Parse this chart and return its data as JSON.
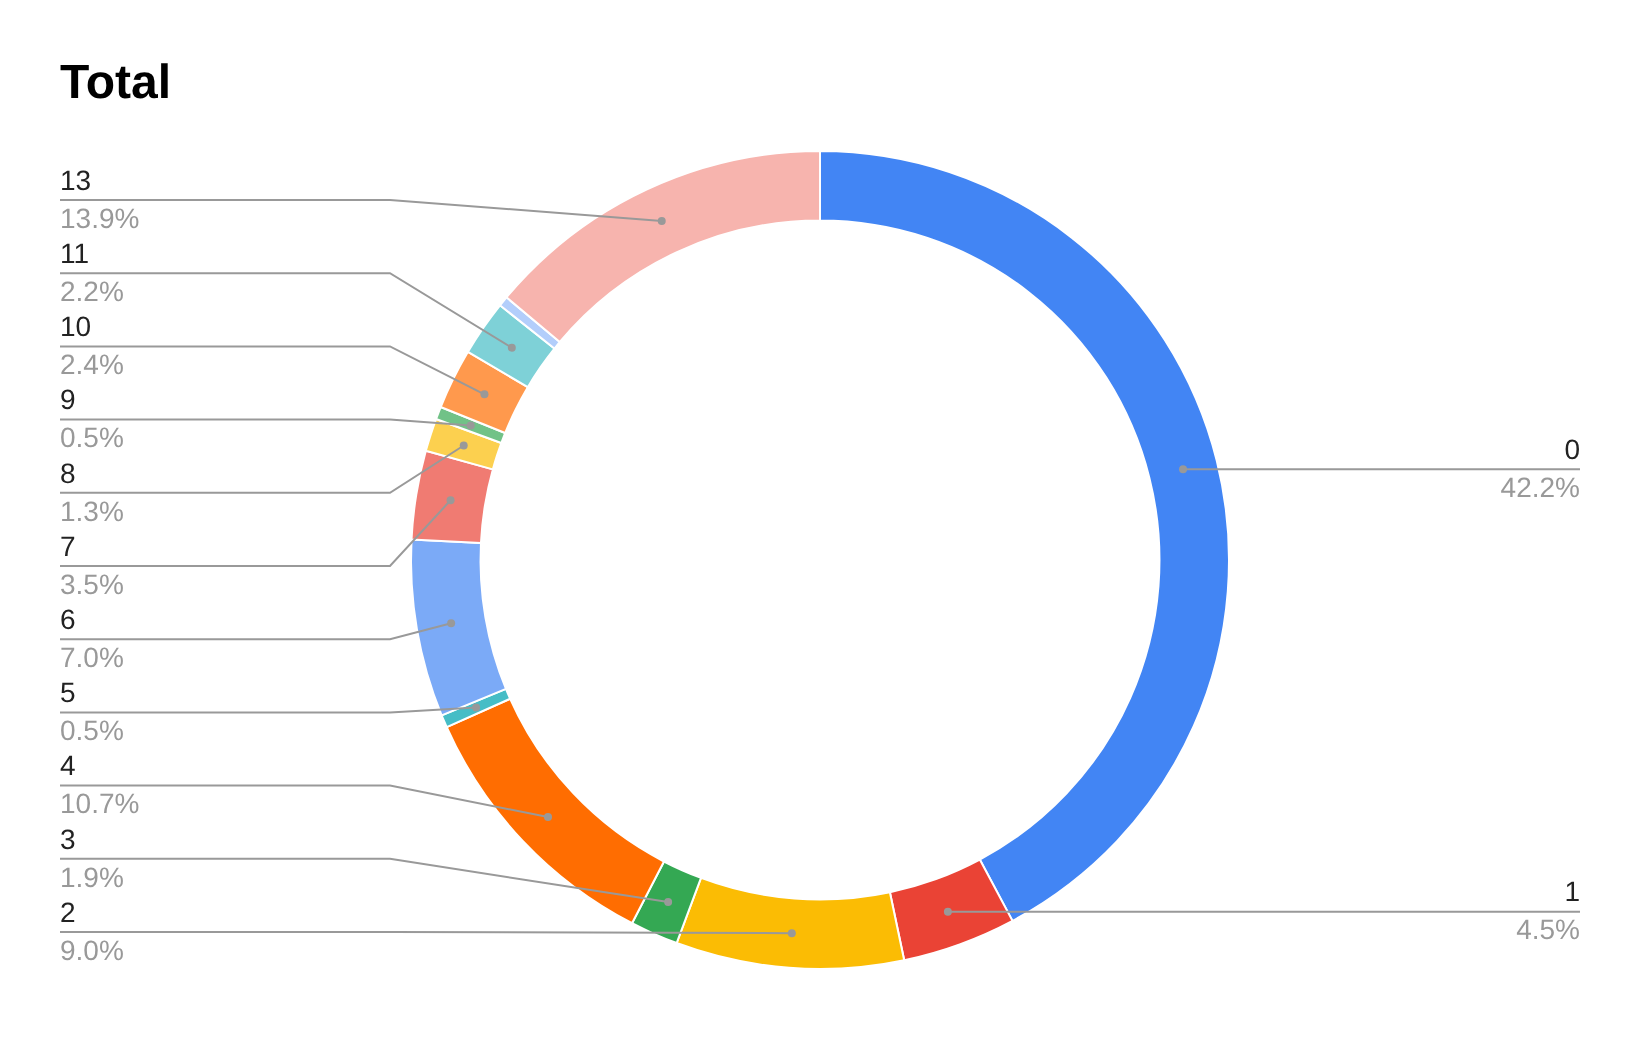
{
  "chart_data": {
    "type": "donut",
    "title": "Total",
    "categories": [
      "0",
      "1",
      "2",
      "3",
      "4",
      "5",
      "6",
      "7",
      "8",
      "9",
      "10",
      "11",
      null,
      "13"
    ],
    "values": [
      42.2,
      4.5,
      9.0,
      1.9,
      10.7,
      0.5,
      7.0,
      3.5,
      1.3,
      0.5,
      2.4,
      2.2,
      0.4,
      13.9
    ],
    "value_labels": [
      "42.2%",
      "4.5%",
      "9.0%",
      "1.9%",
      "10.7%",
      "0.5%",
      "7.0%",
      "3.5%",
      "1.3%",
      "0.5%",
      "2.4%",
      "2.2%",
      null,
      "13.9%"
    ],
    "colors": [
      "#4285f4",
      "#ea4335",
      "#fbbc04",
      "#34a853",
      "#ff6d01",
      "#46bdc6",
      "#7baaf7",
      "#f07b72",
      "#fcd04f",
      "#71c287",
      "#ff994d",
      "#7ed1d7",
      "#b3cefb",
      "#f7b4ae"
    ],
    "legend": false
  }
}
